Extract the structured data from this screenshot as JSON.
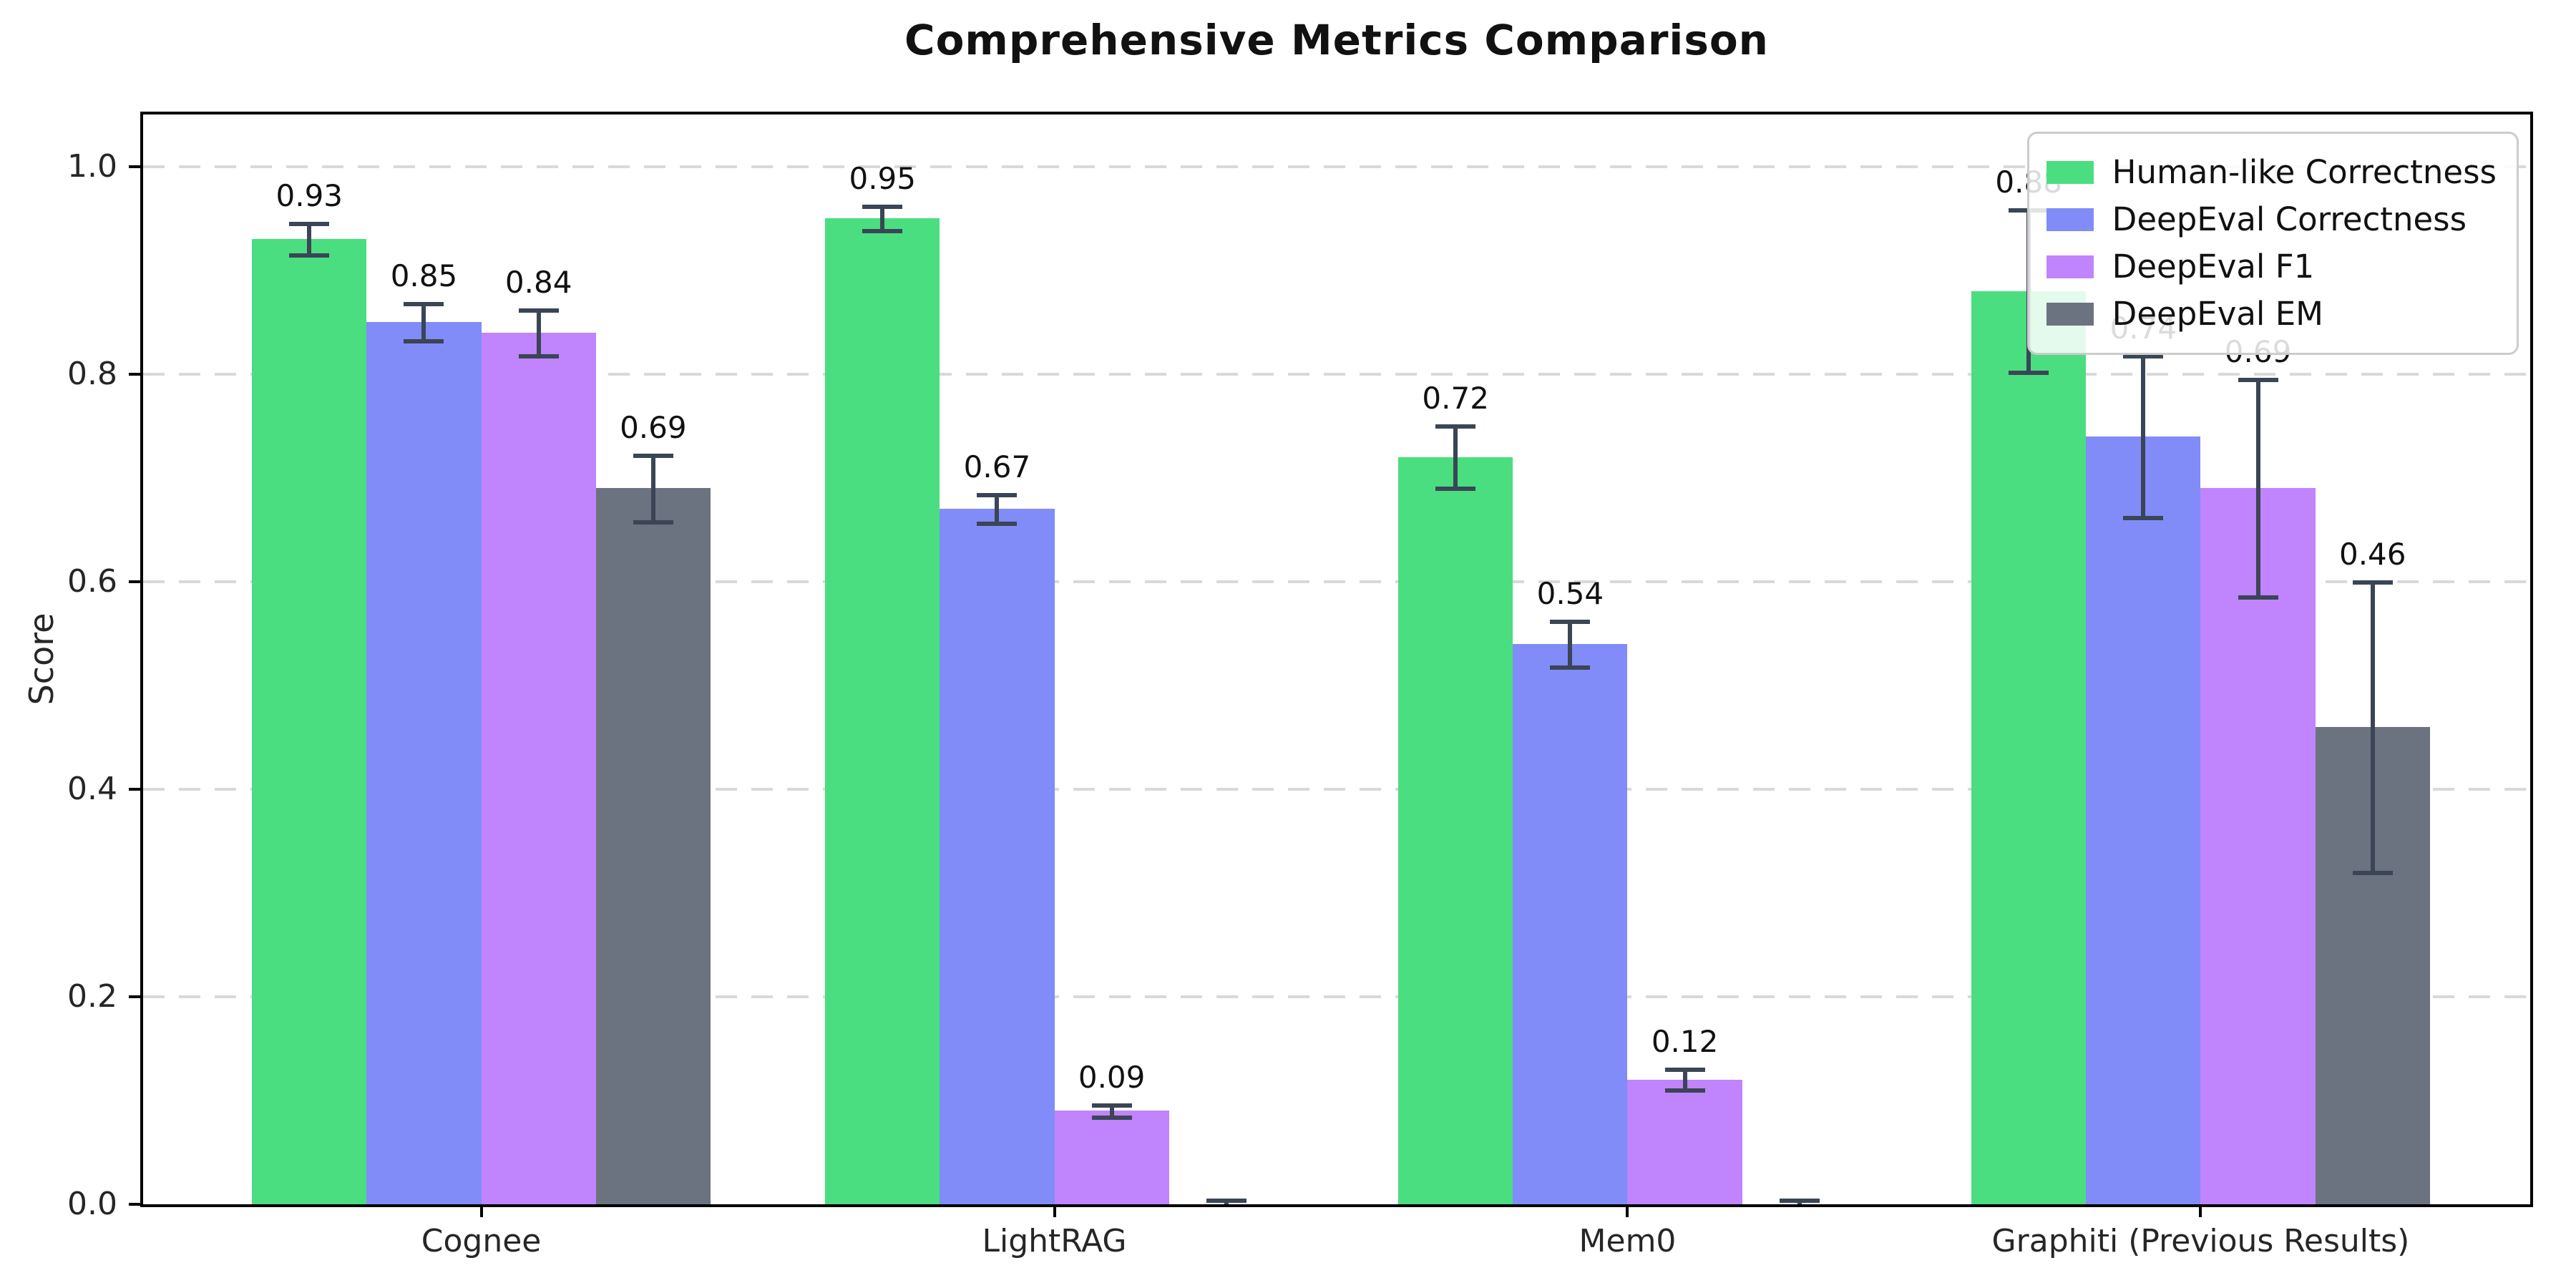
{
  "title": "Comprehensive Metrics Comparison",
  "chart_data": {
    "type": "bar",
    "title": "Comprehensive Metrics Comparison",
    "xlabel": "",
    "ylabel": "Score",
    "ylim": [
      0,
      1.05
    ],
    "yticks": [
      0,
      0.2,
      0.4,
      0.6,
      0.8,
      1.0
    ],
    "ytick_labels": [
      "0.0",
      "0.2",
      "0.4",
      "0.6",
      "0.8",
      "1.0"
    ],
    "grid": "horizontal-dashed",
    "grid_color": "#d9d9d9",
    "legend_position": "upper right",
    "error_bar_color": "#3a4556",
    "categories": [
      "Cognee",
      "LightRAG",
      "Mem0",
      "Graphiti (Previous Results)"
    ],
    "series": [
      {
        "name": "Human-like Correctness",
        "color": "#4ade80",
        "values": [
          0.93,
          0.95,
          0.72,
          0.88
        ],
        "errors": [
          0.015,
          0.012,
          0.03,
          0.078
        ],
        "labels": [
          "0.93",
          "0.95",
          "0.72",
          "0.88"
        ]
      },
      {
        "name": "DeepEval Correctness",
        "color": "#818cf8",
        "values": [
          0.85,
          0.67,
          0.54,
          0.74
        ],
        "errors": [
          0.018,
          0.014,
          0.022,
          0.078
        ],
        "labels": [
          "0.85",
          "0.67",
          "0.54",
          "0.74"
        ]
      },
      {
        "name": "DeepEval F1",
        "color": "#c084fc",
        "values": [
          0.84,
          0.09,
          0.12,
          0.69
        ],
        "errors": [
          0.022,
          0.006,
          0.01,
          0.105
        ],
        "labels": [
          "0.84",
          "0.09",
          "0.12",
          "0.69"
        ]
      },
      {
        "name": "DeepEval EM",
        "color": "#6b7280",
        "values": [
          0.69,
          0.0,
          0.0,
          0.46
        ],
        "errors": [
          0.032,
          0.004,
          0.004,
          0.14
        ],
        "labels": [
          "0.69",
          null,
          null,
          "0.46"
        ]
      }
    ]
  }
}
